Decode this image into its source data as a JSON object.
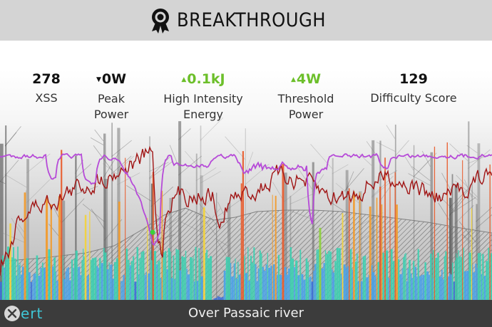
{
  "header": {
    "title": "BREAKTHROUGH",
    "icon": "award-ribbon-icon"
  },
  "metrics": [
    {
      "id": "xss",
      "value": "278",
      "label_lines": [
        "XSS"
      ],
      "trend": "none"
    },
    {
      "id": "peak-power",
      "value": "0W",
      "label_lines": [
        "Peak",
        "Power"
      ],
      "trend": "down"
    },
    {
      "id": "high-intensity-energy",
      "value": "0.1kJ",
      "label_lines": [
        "High Intensity",
        "Energy"
      ],
      "trend": "up"
    },
    {
      "id": "threshold-power",
      "value": "4W",
      "label_lines": [
        "Threshold",
        "Power"
      ],
      "trend": "up"
    },
    {
      "id": "difficulty-score",
      "value": "129",
      "label_lines": [
        "Difficulty Score"
      ],
      "trend": "none"
    }
  ],
  "footer": {
    "activity_name": "Over Passaic river",
    "logo_text": "ert"
  },
  "colors": {
    "header_bg": "#d4d4d4",
    "footer_bg": "#3c3c3c",
    "trend_up": "#6cbf2a",
    "mpa_line": "#b64ad8",
    "power_line": "#a01515",
    "breakthrough_dot": "#3bd13b",
    "logo_accent": "#3fc6d6"
  }
}
